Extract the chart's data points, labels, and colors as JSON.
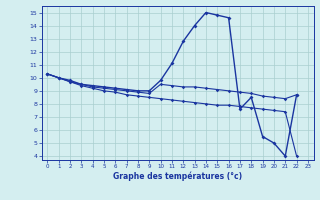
{
  "x": [
    0,
    1,
    2,
    3,
    4,
    5,
    6,
    7,
    8,
    9,
    10,
    11,
    12,
    13,
    14,
    15,
    16,
    17,
    18,
    19,
    20,
    21,
    22,
    23
  ],
  "temp_main": [
    10.3,
    10.0,
    9.8,
    9.5,
    9.4,
    9.3,
    9.2,
    9.1,
    9.0,
    9.0,
    9.8,
    11.1,
    12.8,
    14.0,
    15.0,
    14.8,
    14.6,
    7.6,
    8.5,
    5.5,
    5.0,
    4.0,
    8.7,
    null
  ],
  "temp_line2": [
    10.3,
    10.0,
    9.7,
    9.5,
    9.3,
    9.2,
    9.1,
    9.0,
    8.9,
    8.8,
    9.5,
    9.4,
    9.3,
    9.3,
    9.2,
    9.1,
    9.0,
    8.9,
    8.8,
    8.6,
    8.5,
    8.4,
    8.7,
    null
  ],
  "temp_line3": [
    10.3,
    10.0,
    9.7,
    9.4,
    9.2,
    9.0,
    8.9,
    8.7,
    8.6,
    8.5,
    8.4,
    8.3,
    8.2,
    8.1,
    8.0,
    7.9,
    7.9,
    7.8,
    7.7,
    7.6,
    7.5,
    7.4,
    4.0,
    null
  ],
  "bg_color": "#d4eef0",
  "line_color": "#1a35a0",
  "grid_color": "#aacfcf",
  "xlabel": "Graphe des températures (°c)",
  "ylim_min": 3.7,
  "ylim_max": 15.5,
  "xlim_min": -0.5,
  "xlim_max": 23.5,
  "yticks": [
    4,
    5,
    6,
    7,
    8,
    9,
    10,
    11,
    12,
    13,
    14,
    15
  ],
  "xticks": [
    0,
    1,
    2,
    3,
    4,
    5,
    6,
    7,
    8,
    9,
    10,
    11,
    12,
    13,
    14,
    15,
    16,
    17,
    18,
    19,
    20,
    21,
    22,
    23
  ]
}
